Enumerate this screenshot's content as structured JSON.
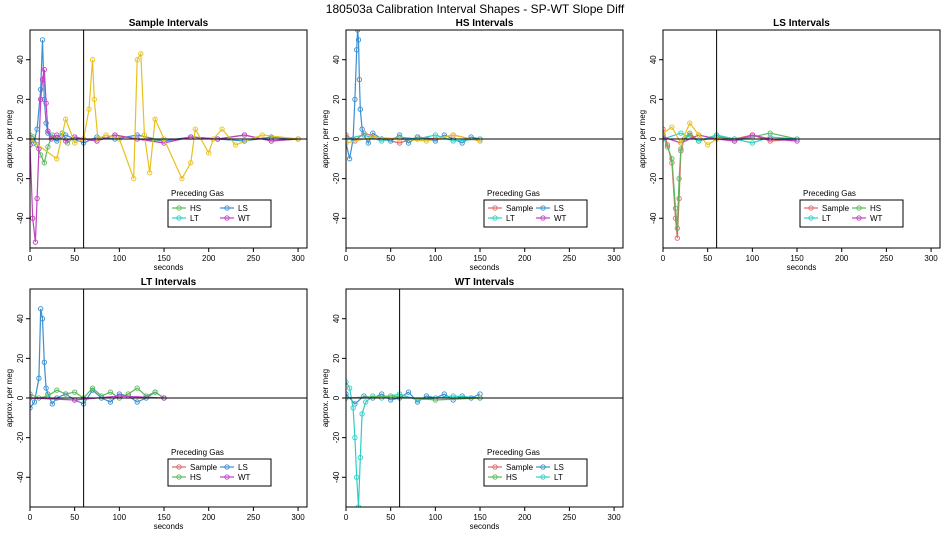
{
  "page_title": "180503a   Calibration Interval Shapes - SP-WT Slope Diff",
  "colors": {
    "Sample": "#E06666",
    "HS": "#5CB85C",
    "LS": "#3A8FD0",
    "LT": "#2ECEC8",
    "WT": "#C23FC2",
    "Other": "#E8C020"
  },
  "chart_data": [
    {
      "type": "line",
      "title": "Sample Intervals",
      "xlabel": "seconds",
      "ylabel": "approx. per meg",
      "xlim": [
        0,
        310
      ],
      "ylim": [
        -55,
        55
      ],
      "xticks": [
        0,
        50,
        100,
        150,
        200,
        250,
        300
      ],
      "yticks": [
        -40,
        -20,
        0,
        20,
        40
      ],
      "vline": 60,
      "hline": 0,
      "legend_title": "Preceding Gas",
      "legend_entries": [
        "HS",
        "LS",
        "LT",
        "WT"
      ],
      "series": [
        {
          "name": "HS",
          "x": [
            0,
            4,
            8,
            12,
            16,
            20,
            25,
            30,
            36,
            42,
            50,
            60,
            75,
            95,
            120,
            150,
            180,
            210,
            240,
            270,
            300
          ],
          "y": [
            2,
            1,
            -3,
            -8,
            -12,
            -4,
            2,
            0,
            3,
            -2,
            1,
            0,
            -1,
            2,
            0,
            -1,
            1,
            0,
            2,
            -1,
            0
          ]
        },
        {
          "name": "LS",
          "x": [
            0,
            4,
            8,
            12,
            14,
            16,
            18,
            20,
            24,
            30,
            40,
            50,
            60,
            75,
            95,
            120,
            150,
            180,
            210,
            240,
            270,
            300
          ],
          "y": [
            0,
            -2,
            5,
            25,
            50,
            20,
            8,
            3,
            1,
            -1,
            2,
            0,
            -2,
            1,
            0,
            2,
            -1,
            1,
            0,
            -1,
            1,
            0
          ]
        },
        {
          "name": "WT",
          "x": [
            0,
            3,
            6,
            8,
            10,
            12,
            14,
            16,
            18,
            20,
            24,
            30,
            40,
            50,
            60,
            75,
            95,
            120,
            150,
            180,
            210,
            240,
            270,
            300
          ],
          "y": [
            -3,
            -40,
            -52,
            -30,
            -5,
            20,
            30,
            35,
            18,
            4,
            0,
            2,
            -1,
            1,
            0,
            -1,
            2,
            0,
            -2,
            1,
            0,
            2,
            -1,
            0
          ]
        },
        {
          "name": "Other",
          "x": [
            0,
            30,
            40,
            50,
            60,
            66,
            70,
            72,
            76,
            85,
            100,
            116,
            120,
            124,
            128,
            134,
            140,
            150,
            170,
            180,
            185,
            200,
            205,
            215,
            230,
            260,
            300
          ],
          "y": [
            0,
            -10,
            10,
            -2,
            0,
            15,
            40,
            20,
            0,
            2,
            0,
            -20,
            40,
            43,
            2,
            -17,
            10,
            0,
            -20,
            -12,
            5,
            -7,
            0,
            5,
            -3,
            2,
            0
          ]
        }
      ]
    },
    {
      "type": "line",
      "title": "HS Intervals",
      "xlabel": "seconds",
      "ylabel": "approx. per meg",
      "xlim": [
        0,
        310
      ],
      "ylim": [
        -55,
        55
      ],
      "xticks": [
        0,
        50,
        100,
        150,
        200,
        250,
        300
      ],
      "yticks": [
        -40,
        -20,
        0,
        20,
        40
      ],
      "hline": 0,
      "legend_title": "Preceding Gas",
      "legend_entries": [
        "Sample",
        "LS",
        "LT",
        "WT"
      ],
      "series": [
        {
          "name": "Sample",
          "x": [
            0,
            10,
            20,
            40,
            60,
            80,
            100,
            120,
            150
          ],
          "y": [
            2,
            -1,
            3,
            0,
            -2,
            1,
            0,
            2,
            -1
          ]
        },
        {
          "name": "LS",
          "x": [
            0,
            4,
            8,
            10,
            12,
            13,
            14,
            15,
            16,
            18,
            20,
            25,
            30,
            40,
            50,
            60,
            70,
            80,
            90,
            100,
            110,
            120,
            130,
            140,
            150
          ],
          "y": [
            -2,
            -10,
            0,
            20,
            45,
            55,
            50,
            30,
            15,
            5,
            2,
            -2,
            3,
            0,
            -1,
            2,
            -2,
            1,
            0,
            -1,
            2,
            0,
            -2,
            1,
            0
          ]
        },
        {
          "name": "LT",
          "x": [
            0,
            20,
            40,
            60,
            80,
            100,
            120,
            150
          ],
          "y": [
            0,
            2,
            -1,
            1,
            0,
            2,
            -1,
            0
          ]
        },
        {
          "name": "Other",
          "x": [
            0,
            30,
            60,
            90,
            120,
            150
          ],
          "y": [
            -2,
            1,
            0,
            -1,
            2,
            -1
          ]
        }
      ]
    },
    {
      "type": "line",
      "title": "LS Intervals",
      "xlabel": "seconds",
      "ylabel": "approx. per meg",
      "xlim": [
        0,
        310
      ],
      "ylim": [
        -55,
        55
      ],
      "xticks": [
        0,
        50,
        100,
        150,
        200,
        250,
        300
      ],
      "yticks": [
        -40,
        -20,
        0,
        20,
        40
      ],
      "vline": 60,
      "hline": 0,
      "legend_title": "Preceding Gas",
      "legend_entries": [
        "Sample",
        "HS",
        "LT",
        "WT"
      ],
      "series": [
        {
          "name": "Sample",
          "x": [
            0,
            5,
            10,
            14,
            16,
            18,
            20,
            24,
            30,
            40,
            60,
            80,
            100,
            120,
            150
          ],
          "y": [
            5,
            -3,
            -12,
            -40,
            -50,
            -30,
            -6,
            0,
            2,
            -1,
            1,
            0,
            2,
            -1,
            0
          ]
        },
        {
          "name": "HS",
          "x": [
            0,
            5,
            10,
            14,
            16,
            18,
            20,
            24,
            30,
            40,
            60,
            80,
            100,
            120,
            150
          ],
          "y": [
            2,
            -4,
            -10,
            -35,
            -45,
            -20,
            -5,
            0,
            3,
            -1,
            2,
            -1,
            1,
            3,
            0
          ]
        },
        {
          "name": "LT",
          "x": [
            0,
            20,
            40,
            60,
            80,
            100,
            120,
            150
          ],
          "y": [
            0,
            3,
            -1,
            2,
            0,
            -2,
            1,
            0
          ]
        },
        {
          "name": "WT",
          "x": [
            0,
            20,
            40,
            60,
            80,
            100,
            120,
            150
          ],
          "y": [
            1,
            -2,
            2,
            0,
            -1,
            2,
            0,
            -1
          ]
        },
        {
          "name": "Other",
          "x": [
            0,
            10,
            20,
            30,
            40,
            50,
            60
          ],
          "y": [
            3,
            6,
            -2,
            8,
            2,
            -3,
            0
          ]
        }
      ]
    },
    {
      "type": "line",
      "title": "LT Intervals",
      "xlabel": "seconds",
      "ylabel": "approx. per meg",
      "xlim": [
        0,
        310
      ],
      "ylim": [
        -55,
        55
      ],
      "xticks": [
        0,
        50,
        100,
        150,
        200,
        250,
        300
      ],
      "yticks": [
        -40,
        -20,
        0,
        20,
        40
      ],
      "vline": 60,
      "hline": 0,
      "legend_title": "Preceding Gas",
      "legend_entries": [
        "Sample",
        "LS",
        "HS",
        "WT"
      ],
      "series": [
        {
          "name": "LS",
          "x": [
            0,
            5,
            10,
            12,
            14,
            16,
            18,
            20,
            25,
            30,
            40,
            50,
            60,
            70,
            80,
            90,
            100,
            110,
            120,
            130,
            140,
            150
          ],
          "y": [
            -5,
            -2,
            10,
            45,
            40,
            18,
            5,
            2,
            -3,
            0,
            2,
            -1,
            -3,
            4,
            0,
            -2,
            2,
            1,
            -2,
            0,
            3,
            0
          ]
        },
        {
          "name": "HS",
          "x": [
            0,
            10,
            20,
            30,
            40,
            50,
            60,
            70,
            80,
            90,
            100,
            110,
            120,
            130,
            140,
            150
          ],
          "y": [
            2,
            0,
            1,
            4,
            2,
            3,
            0,
            5,
            1,
            3,
            0,
            2,
            5,
            1,
            3,
            0
          ]
        },
        {
          "name": "WT",
          "x": [
            0,
            50,
            100,
            150
          ],
          "y": [
            0,
            -1,
            1,
            0
          ]
        }
      ]
    },
    {
      "type": "line",
      "title": "WT Intervals",
      "xlabel": "seconds",
      "ylabel": "approx. per meg",
      "xlim": [
        0,
        310
      ],
      "ylim": [
        -55,
        55
      ],
      "xticks": [
        0,
        50,
        100,
        150,
        200,
        250,
        300
      ],
      "yticks": [
        -40,
        -20,
        0,
        20,
        40
      ],
      "vline": 60,
      "hline": 0,
      "legend_title": "Preceding Gas",
      "legend_entries": [
        "Sample",
        "LS",
        "HS",
        "LT"
      ],
      "series": [
        {
          "name": "LS",
          "x": [
            0,
            10,
            20,
            30,
            40,
            50,
            60,
            70,
            80,
            90,
            100,
            110,
            120,
            130,
            140,
            150
          ],
          "y": [
            2,
            -3,
            1,
            0,
            2,
            -1,
            0,
            3,
            -2,
            1,
            0,
            2,
            -1,
            1,
            0,
            2
          ]
        },
        {
          "name": "LT",
          "x": [
            0,
            4,
            8,
            10,
            12,
            14,
            16,
            18,
            22,
            30,
            40,
            60,
            80,
            100,
            120,
            150
          ],
          "y": [
            8,
            5,
            -5,
            -20,
            -40,
            -55,
            -30,
            -8,
            -2,
            1,
            0,
            2,
            -1,
            0,
            1,
            0
          ]
        },
        {
          "name": "HS",
          "x": [
            0,
            50,
            100,
            150
          ],
          "y": [
            0,
            1,
            -1,
            0
          ]
        }
      ]
    }
  ]
}
